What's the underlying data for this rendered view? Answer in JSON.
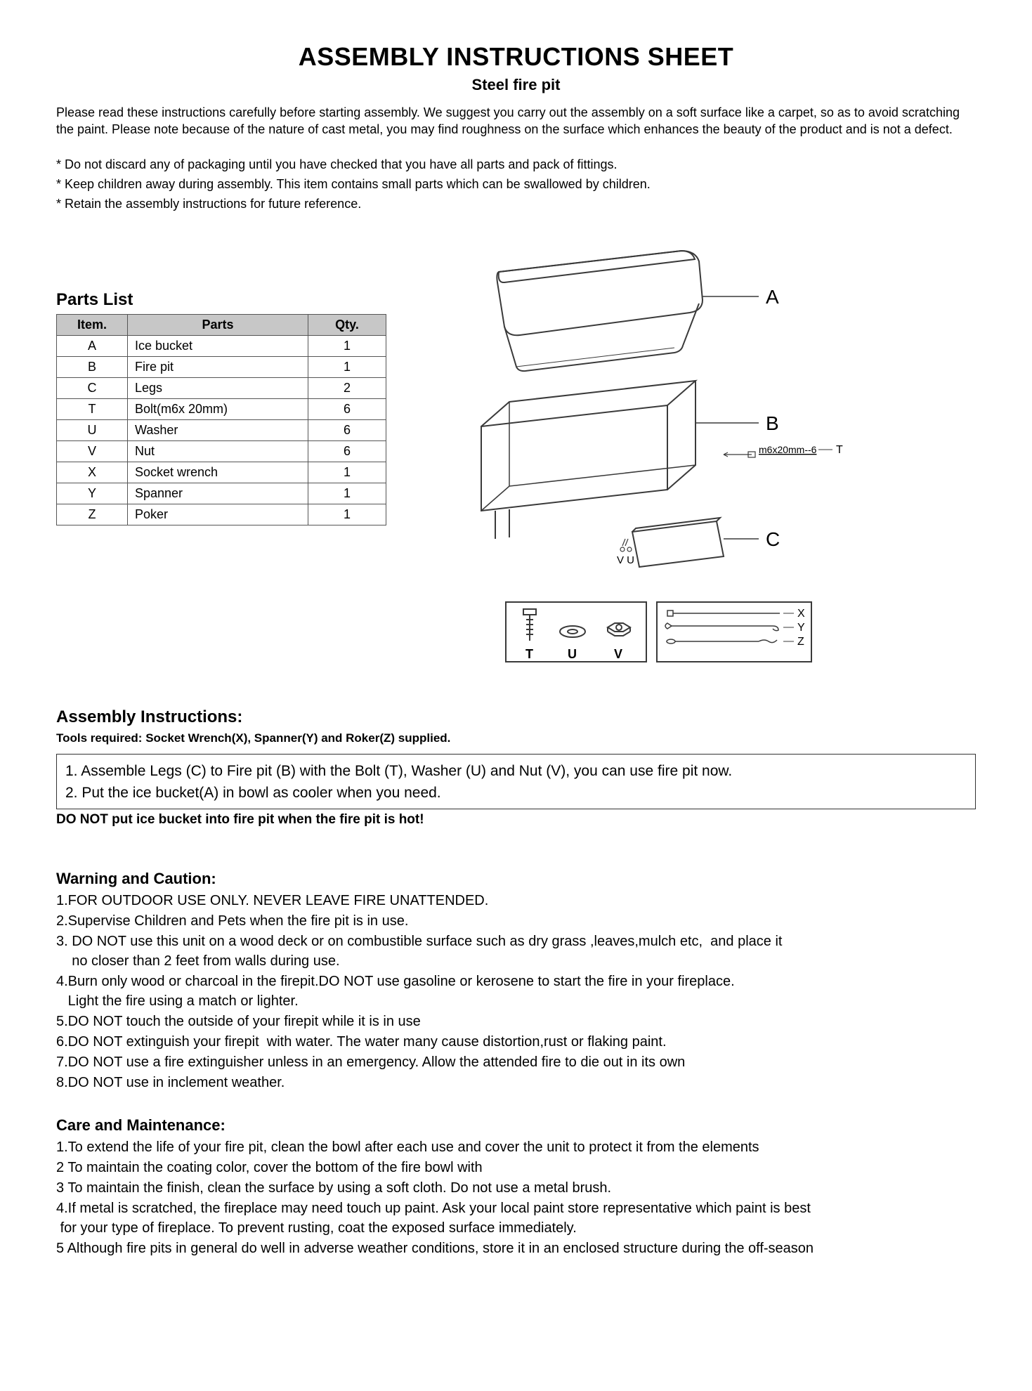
{
  "title": "ASSEMBLY INSTRUCTIONS SHEET",
  "subtitle": "Steel fire pit",
  "intro": "Please read these instructions carefully before starting assembly. We suggest you carry out the assembly on a soft surface like a carpet, so as to avoid scratching the paint. Please note because of the nature of cast metal, you may find roughness on the surface which enhances the beauty of the product and is not a defect.",
  "notes": [
    "* Do not discard any of packaging until you have checked that you have all parts and pack of fittings.",
    "* Keep children away during assembly. This item contains small parts which can be swallowed by children.",
    "* Retain the assembly instructions for future reference."
  ],
  "partsList": {
    "heading": "Parts List",
    "columns": [
      "Item.",
      "Parts",
      "Qty."
    ],
    "rows": [
      [
        "A",
        "Ice bucket",
        "1"
      ],
      [
        "B",
        "Fire pit",
        "1"
      ],
      [
        "C",
        "Legs",
        "2"
      ],
      [
        "T",
        "Bolt(m6x 20mm)",
        "6"
      ],
      [
        "U",
        "Washer",
        "6"
      ],
      [
        "V",
        "Nut",
        "6"
      ],
      [
        "X",
        "Socket wrench",
        "1"
      ],
      [
        "Y",
        "Spanner",
        "1"
      ],
      [
        "Z",
        "Poker",
        "1"
      ]
    ]
  },
  "diagram": {
    "labels": {
      "A": "A",
      "B": "B",
      "C": "C",
      "bolt": "m6x20mm--6",
      "boltT": "T",
      "VU": "V U",
      "T": "T",
      "U": "U",
      "V": "V",
      "X": "X",
      "Y": "Y",
      "Z": "Z"
    },
    "colors": {
      "stroke": "#3a3a3a",
      "thin": "#555555"
    }
  },
  "assembly": {
    "heading": "Assembly Instructions:",
    "tools": "Tools required: Socket Wrench(X), Spanner(Y) and Roker(Z) supplied.",
    "steps": [
      "1. Assemble Legs (C) to Fire pit (B) with the Bolt (T), Washer (U) and Nut (V), you can use fire pit now.",
      "2. Put the ice bucket(A) in bowl as cooler when you need."
    ],
    "warningBold": "DO NOT put ice bucket into fire pit when the fire pit is hot!"
  },
  "warning": {
    "heading": "Warning and Caution:",
    "items": [
      "1.FOR OUTDOOR USE ONLY. NEVER LEAVE FIRE UNATTENDED.",
      "2.Supervise Children and Pets when the fire pit is in use.",
      "3. DO NOT use this unit on a wood deck or on combustible surface such as dry grass ,leaves,mulch etc,  and place it\n    no closer than 2 feet from walls during use.",
      "4.Burn only wood or charcoal in the firepit.DO NOT use gasoline or kerosene to start the fire in your fireplace.\n   Light the fire using a match or lighter.",
      "5.DO NOT touch the outside of your firepit while it is in use",
      "6.DO NOT extinguish your firepit  with water. The water many cause distortion,rust or flaking paint.",
      "7.DO NOT use a fire extinguisher unless in an emergency. Allow the attended fire to die out in its own",
      "8.DO NOT use in inclement weather."
    ]
  },
  "care": {
    "heading": "Care and Maintenance:",
    "items": [
      "1.To extend the life of your fire pit, clean the bowl after each use and cover the unit to protect it from the elements",
      "2 To maintain the coating color, cover the bottom of the fire bowl with",
      "3 To maintain the finish, clean the surface by using a soft cloth. Do not use a metal brush.",
      "4.If metal is scratched, the fireplace may need touch up paint. Ask your local paint store representative which paint is best\n for your type of fireplace. To prevent rusting, coat the exposed surface immediately.",
      "5 Although fire pits in general do well in adverse weather conditions, store it in an enclosed structure during the off-season"
    ]
  }
}
